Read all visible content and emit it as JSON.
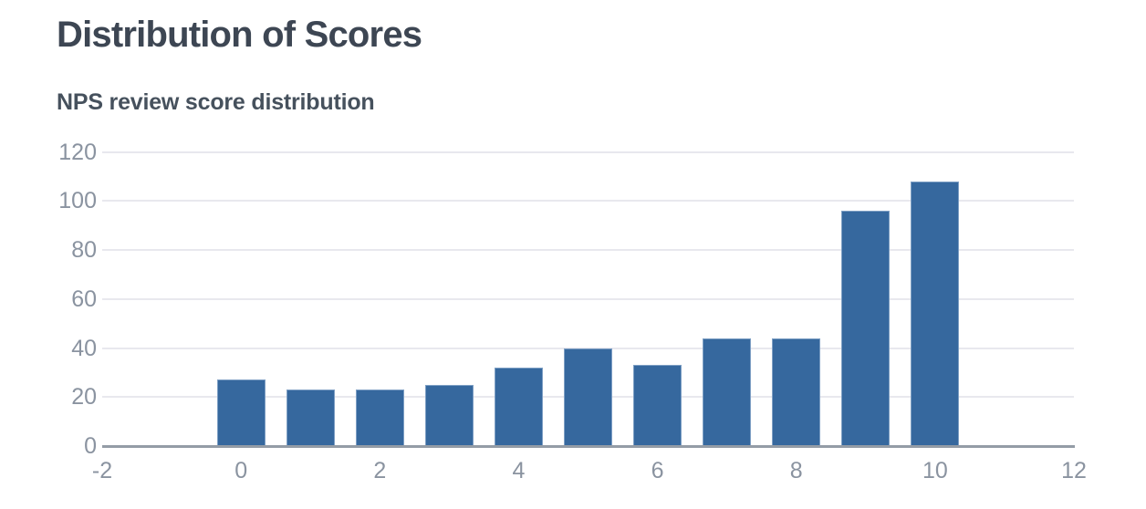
{
  "header": {
    "title": "Distribution of Scores",
    "subtitle": "NPS review score distribution"
  },
  "chart_data": {
    "type": "bar",
    "title": "Distribution of Scores",
    "subtitle": "NPS review score distribution",
    "categories": [
      0,
      1,
      2,
      3,
      4,
      5,
      6,
      7,
      8,
      9,
      10
    ],
    "values": [
      27,
      23,
      23,
      25,
      32,
      40,
      33,
      44,
      44,
      96,
      108
    ],
    "xlabel": "",
    "ylabel": "",
    "xticks": [
      -2,
      0,
      2,
      4,
      6,
      8,
      10,
      12
    ],
    "yticks": [
      0,
      20,
      40,
      60,
      80,
      100,
      120
    ],
    "xlim": [
      -2,
      12
    ],
    "ylim": [
      0,
      120
    ],
    "grid": "horizontal",
    "legend": "none",
    "bar_width_units": 0.7,
    "colors": {
      "bar_fill": "#36689e",
      "bar_edge": "#7e9fc4",
      "grid_line": "#e8e8ee",
      "axis_line": "#949ca6",
      "tick_label": "#8a93a0",
      "title": "#3d4653",
      "subtitle": "#46515d",
      "background": "#ffffff"
    }
  }
}
